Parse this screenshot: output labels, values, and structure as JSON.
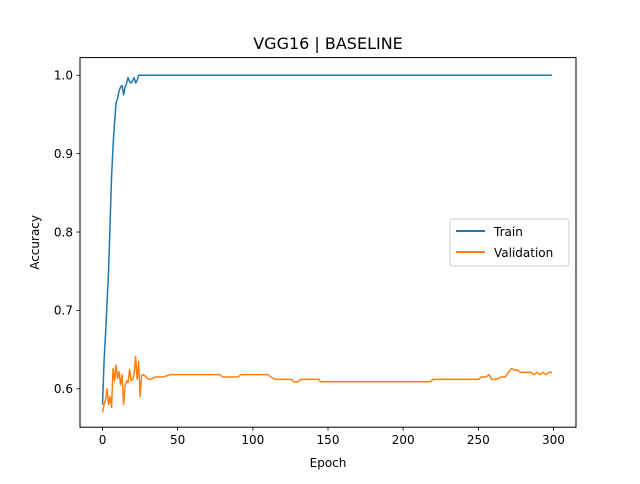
{
  "chart_data": {
    "type": "line",
    "title": "VGG16 | BASELINE",
    "xlabel": "Epoch",
    "ylabel": "Accuracy",
    "xlim": [
      -15,
      315
    ],
    "ylim": [
      0.551,
      1.0225
    ],
    "xticks": [
      0,
      50,
      100,
      150,
      200,
      250,
      300
    ],
    "yticks": [
      0.6,
      0.7,
      0.8,
      0.9,
      1.0
    ],
    "xtick_labels": [
      "0",
      "50",
      "100",
      "150",
      "200",
      "250",
      "300"
    ],
    "ytick_labels": [
      "0.6",
      "0.7",
      "0.8",
      "0.9",
      "1.0"
    ],
    "grid": false,
    "legend_position": "center-right",
    "series": [
      {
        "name": "Train",
        "color": "#1f77b4",
        "points": [
          [
            0,
            0.58
          ],
          [
            1,
            0.635
          ],
          [
            2,
            0.67
          ],
          [
            3,
            0.71
          ],
          [
            4,
            0.75
          ],
          [
            5,
            0.81
          ],
          [
            6,
            0.87
          ],
          [
            7,
            0.91
          ],
          [
            8,
            0.94
          ],
          [
            9,
            0.965
          ],
          [
            10,
            0.97
          ],
          [
            11,
            0.98
          ],
          [
            12,
            0.985
          ],
          [
            13,
            0.987
          ],
          [
            14,
            0.975
          ],
          [
            15,
            0.985
          ],
          [
            16,
            0.99
          ],
          [
            17,
            0.997
          ],
          [
            18,
            0.992
          ],
          [
            19,
            0.99
          ],
          [
            20,
            0.993
          ],
          [
            21,
            0.997
          ],
          [
            22,
            0.99
          ],
          [
            23,
            0.993
          ],
          [
            24,
            1.0
          ],
          [
            25,
            1.0
          ],
          [
            299,
            1.0
          ]
        ]
      },
      {
        "name": "Validation",
        "color": "#ff7f0e",
        "points": [
          [
            0,
            0.57
          ],
          [
            1,
            0.58
          ],
          [
            2,
            0.585
          ],
          [
            3,
            0.6
          ],
          [
            4,
            0.58
          ],
          [
            5,
            0.59
          ],
          [
            6,
            0.576
          ],
          [
            7,
            0.626
          ],
          [
            8,
            0.61
          ],
          [
            9,
            0.63
          ],
          [
            10,
            0.613
          ],
          [
            11,
            0.622
          ],
          [
            12,
            0.605
          ],
          [
            13,
            0.618
          ],
          [
            14,
            0.58
          ],
          [
            15,
            0.603
          ],
          [
            16,
            0.61
          ],
          [
            17,
            0.608
          ],
          [
            18,
            0.625
          ],
          [
            19,
            0.61
          ],
          [
            20,
            0.612
          ],
          [
            21,
            0.618
          ],
          [
            22,
            0.641
          ],
          [
            23,
            0.612
          ],
          [
            24,
            0.635
          ],
          [
            25,
            0.59
          ],
          [
            26,
            0.617
          ],
          [
            27,
            0.618
          ],
          [
            28,
            0.617
          ],
          [
            30,
            0.613
          ],
          [
            32,
            0.612
          ],
          [
            35,
            0.615
          ],
          [
            40,
            0.615
          ],
          [
            45,
            0.618
          ],
          [
            50,
            0.618
          ],
          [
            60,
            0.618
          ],
          [
            70,
            0.618
          ],
          [
            78,
            0.618
          ],
          [
            80,
            0.615
          ],
          [
            85,
            0.615
          ],
          [
            90,
            0.615
          ],
          [
            92,
            0.618
          ],
          [
            100,
            0.618
          ],
          [
            110,
            0.618
          ],
          [
            112,
            0.615
          ],
          [
            115,
            0.612
          ],
          [
            120,
            0.612
          ],
          [
            126,
            0.612
          ],
          [
            127,
            0.609
          ],
          [
            130,
            0.609
          ],
          [
            132,
            0.612
          ],
          [
            140,
            0.612
          ],
          [
            144,
            0.612
          ],
          [
            145,
            0.609
          ],
          [
            160,
            0.609
          ],
          [
            180,
            0.609
          ],
          [
            200,
            0.609
          ],
          [
            218,
            0.609
          ],
          [
            220,
            0.612
          ],
          [
            230,
            0.612
          ],
          [
            240,
            0.612
          ],
          [
            250,
            0.612
          ],
          [
            252,
            0.615
          ],
          [
            255,
            0.615
          ],
          [
            257,
            0.618
          ],
          [
            259,
            0.612
          ],
          [
            262,
            0.612
          ],
          [
            265,
            0.615
          ],
          [
            268,
            0.615
          ],
          [
            270,
            0.621
          ],
          [
            272,
            0.626
          ],
          [
            274,
            0.624
          ],
          [
            276,
            0.624
          ],
          [
            278,
            0.621
          ],
          [
            282,
            0.621
          ],
          [
            285,
            0.621
          ],
          [
            287,
            0.618
          ],
          [
            289,
            0.621
          ],
          [
            291,
            0.618
          ],
          [
            293,
            0.621
          ],
          [
            295,
            0.618
          ],
          [
            297,
            0.621
          ],
          [
            299,
            0.621
          ]
        ]
      }
    ]
  }
}
